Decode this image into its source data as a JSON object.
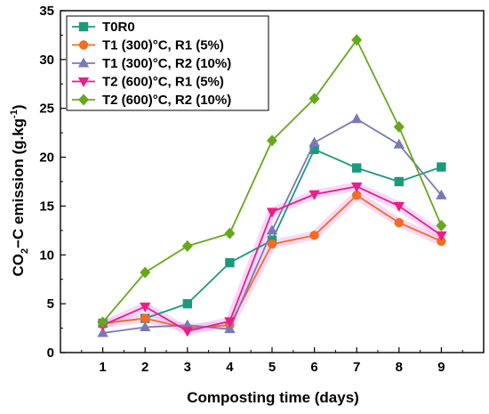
{
  "chart_data": {
    "type": "line",
    "xlabel": "Composting time (days)",
    "ylabel": {
      "prefix": "CO",
      "sub": "2",
      "mid": "−C emission (g.kg",
      "sup": "-1",
      "suffix": ")"
    },
    "x": [
      1,
      2,
      3,
      4,
      5,
      6,
      7,
      8,
      9
    ],
    "xlim": [
      0,
      10
    ],
    "ylim": [
      0,
      35
    ],
    "xticks": [
      1,
      2,
      3,
      4,
      5,
      6,
      7,
      8,
      9
    ],
    "yticks": [
      0,
      5,
      10,
      15,
      20,
      25,
      30,
      35
    ],
    "grid": false,
    "legend_position": "top-left",
    "series": [
      {
        "name": "T0R0",
        "color": "#1a9a7c",
        "marker": "square",
        "values": [
          3.0,
          3.5,
          5.0,
          9.2,
          11.5,
          20.8,
          18.9,
          17.5,
          19.0
        ]
      },
      {
        "name": "T1 (300)°C, R1 (5%)",
        "color": "#f26d21",
        "marker": "circle",
        "values": [
          3.0,
          3.5,
          2.5,
          2.8,
          11.1,
          12.0,
          16.1,
          13.3,
          11.4
        ]
      },
      {
        "name": "T1 (300)°C, R2 (10%)",
        "color": "#7b78b5",
        "marker": "triangle-up",
        "values": [
          2.0,
          2.6,
          2.8,
          2.4,
          12.5,
          21.5,
          23.9,
          21.3,
          16.1
        ]
      },
      {
        "name": "T2 (600)°C, R1 (5%)",
        "color": "#ea1e87",
        "marker": "triangle-down",
        "values": [
          2.8,
          4.7,
          2.2,
          3.2,
          14.4,
          16.2,
          17.0,
          15.0,
          12.0
        ]
      },
      {
        "name": "T2 (600)°C, R2 (10%)",
        "color": "#66a81a",
        "marker": "diamond",
        "values": [
          3.1,
          8.2,
          10.9,
          12.2,
          21.7,
          26.0,
          32.0,
          23.1,
          13.0
        ]
      }
    ]
  }
}
